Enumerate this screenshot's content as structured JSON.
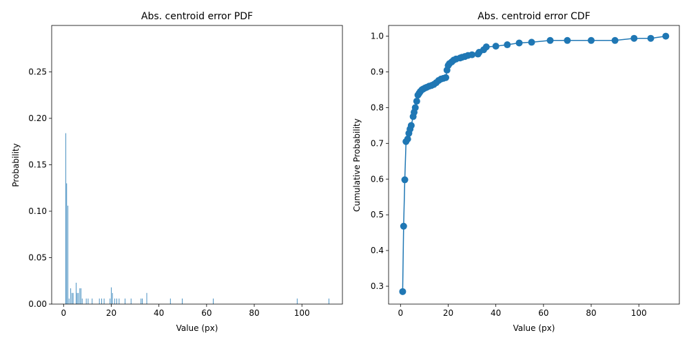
{
  "chart_data": [
    {
      "type": "bar",
      "title": "Abs. centroid error PDF",
      "xlabel": "Value (px)",
      "ylabel": "Probability",
      "xlim": [
        -5,
        117
      ],
      "ylim": [
        0,
        0.3
      ],
      "xticks": [
        0,
        20,
        40,
        60,
        80,
        100
      ],
      "yticks": [
        0.0,
        0.05,
        0.1,
        0.15,
        0.2,
        0.25
      ],
      "ytick_labels": [
        "0.00",
        "0.05",
        "0.10",
        "0.15",
        "0.20",
        "0.25"
      ],
      "color": "#1f77b4",
      "grid": false,
      "x": [
        0.9,
        1.3,
        1.8,
        2.3,
        3.0,
        3.5,
        4.0,
        5.3,
        5.7,
        6.2,
        6.8,
        7.3,
        7.8,
        9.5,
        10.3,
        12.0,
        15.0,
        16.0,
        17.0,
        19.5,
        20.0,
        20.5,
        21.5,
        22.3,
        23.3,
        25.8,
        28.3,
        32.5,
        33.0,
        34.9,
        44.8,
        49.8,
        62.8,
        98.0,
        111.3
      ],
      "values": [
        0.184,
        0.13,
        0.106,
        0.006,
        0.017,
        0.012,
        0.012,
        0.023,
        0.012,
        0.012,
        0.017,
        0.017,
        0.006,
        0.006,
        0.006,
        0.006,
        0.006,
        0.006,
        0.006,
        0.006,
        0.018,
        0.012,
        0.006,
        0.006,
        0.006,
        0.006,
        0.006,
        0.006,
        0.006,
        0.012,
        0.006,
        0.006,
        0.006,
        0.006,
        0.006
      ]
    },
    {
      "type": "line",
      "title": "Abs. centroid error CDF",
      "xlabel": "Value (px)",
      "ylabel": "Cumulative Probability",
      "xlim": [
        -5,
        117
      ],
      "ylim": [
        0.25,
        1.03
      ],
      "xticks": [
        0,
        20,
        40,
        60,
        80,
        100
      ],
      "yticks": [
        0.3,
        0.4,
        0.5,
        0.6,
        0.7,
        0.8,
        0.9,
        1.0
      ],
      "ytick_labels": [
        "0.3",
        "0.4",
        "0.5",
        "0.6",
        "0.7",
        "0.8",
        "0.9",
        "1.0"
      ],
      "color": "#1f77b4",
      "grid": false,
      "markers": true,
      "x": [
        0.9,
        1.3,
        1.8,
        2.3,
        3.0,
        3.5,
        4.0,
        4.5,
        5.3,
        5.7,
        6.2,
        6.8,
        7.3,
        7.8,
        8.3,
        9.0,
        9.5,
        10.3,
        11.0,
        12.0,
        13.0,
        14.0,
        15.0,
        16.0,
        17.0,
        18.0,
        19.0,
        19.5,
        20.0,
        20.5,
        21.5,
        22.3,
        23.3,
        25.0,
        25.8,
        27.0,
        28.3,
        30.0,
        32.5,
        33.0,
        34.9,
        36.0,
        40.0,
        44.8,
        49.8,
        55.0,
        62.8,
        70.0,
        80.0,
        90.0,
        98.0,
        105.0,
        111.3
      ],
      "values": [
        0.285,
        0.468,
        0.598,
        0.705,
        0.712,
        0.728,
        0.74,
        0.75,
        0.775,
        0.787,
        0.8,
        0.818,
        0.835,
        0.84,
        0.845,
        0.85,
        0.852,
        0.855,
        0.857,
        0.86,
        0.862,
        0.865,
        0.87,
        0.876,
        0.88,
        0.882,
        0.884,
        0.905,
        0.918,
        0.923,
        0.928,
        0.933,
        0.936,
        0.939,
        0.941,
        0.943,
        0.946,
        0.948,
        0.95,
        0.955,
        0.962,
        0.97,
        0.972,
        0.976,
        0.981,
        0.983,
        0.988,
        0.988,
        0.988,
        0.988,
        0.994,
        0.994,
        1.0
      ]
    }
  ]
}
